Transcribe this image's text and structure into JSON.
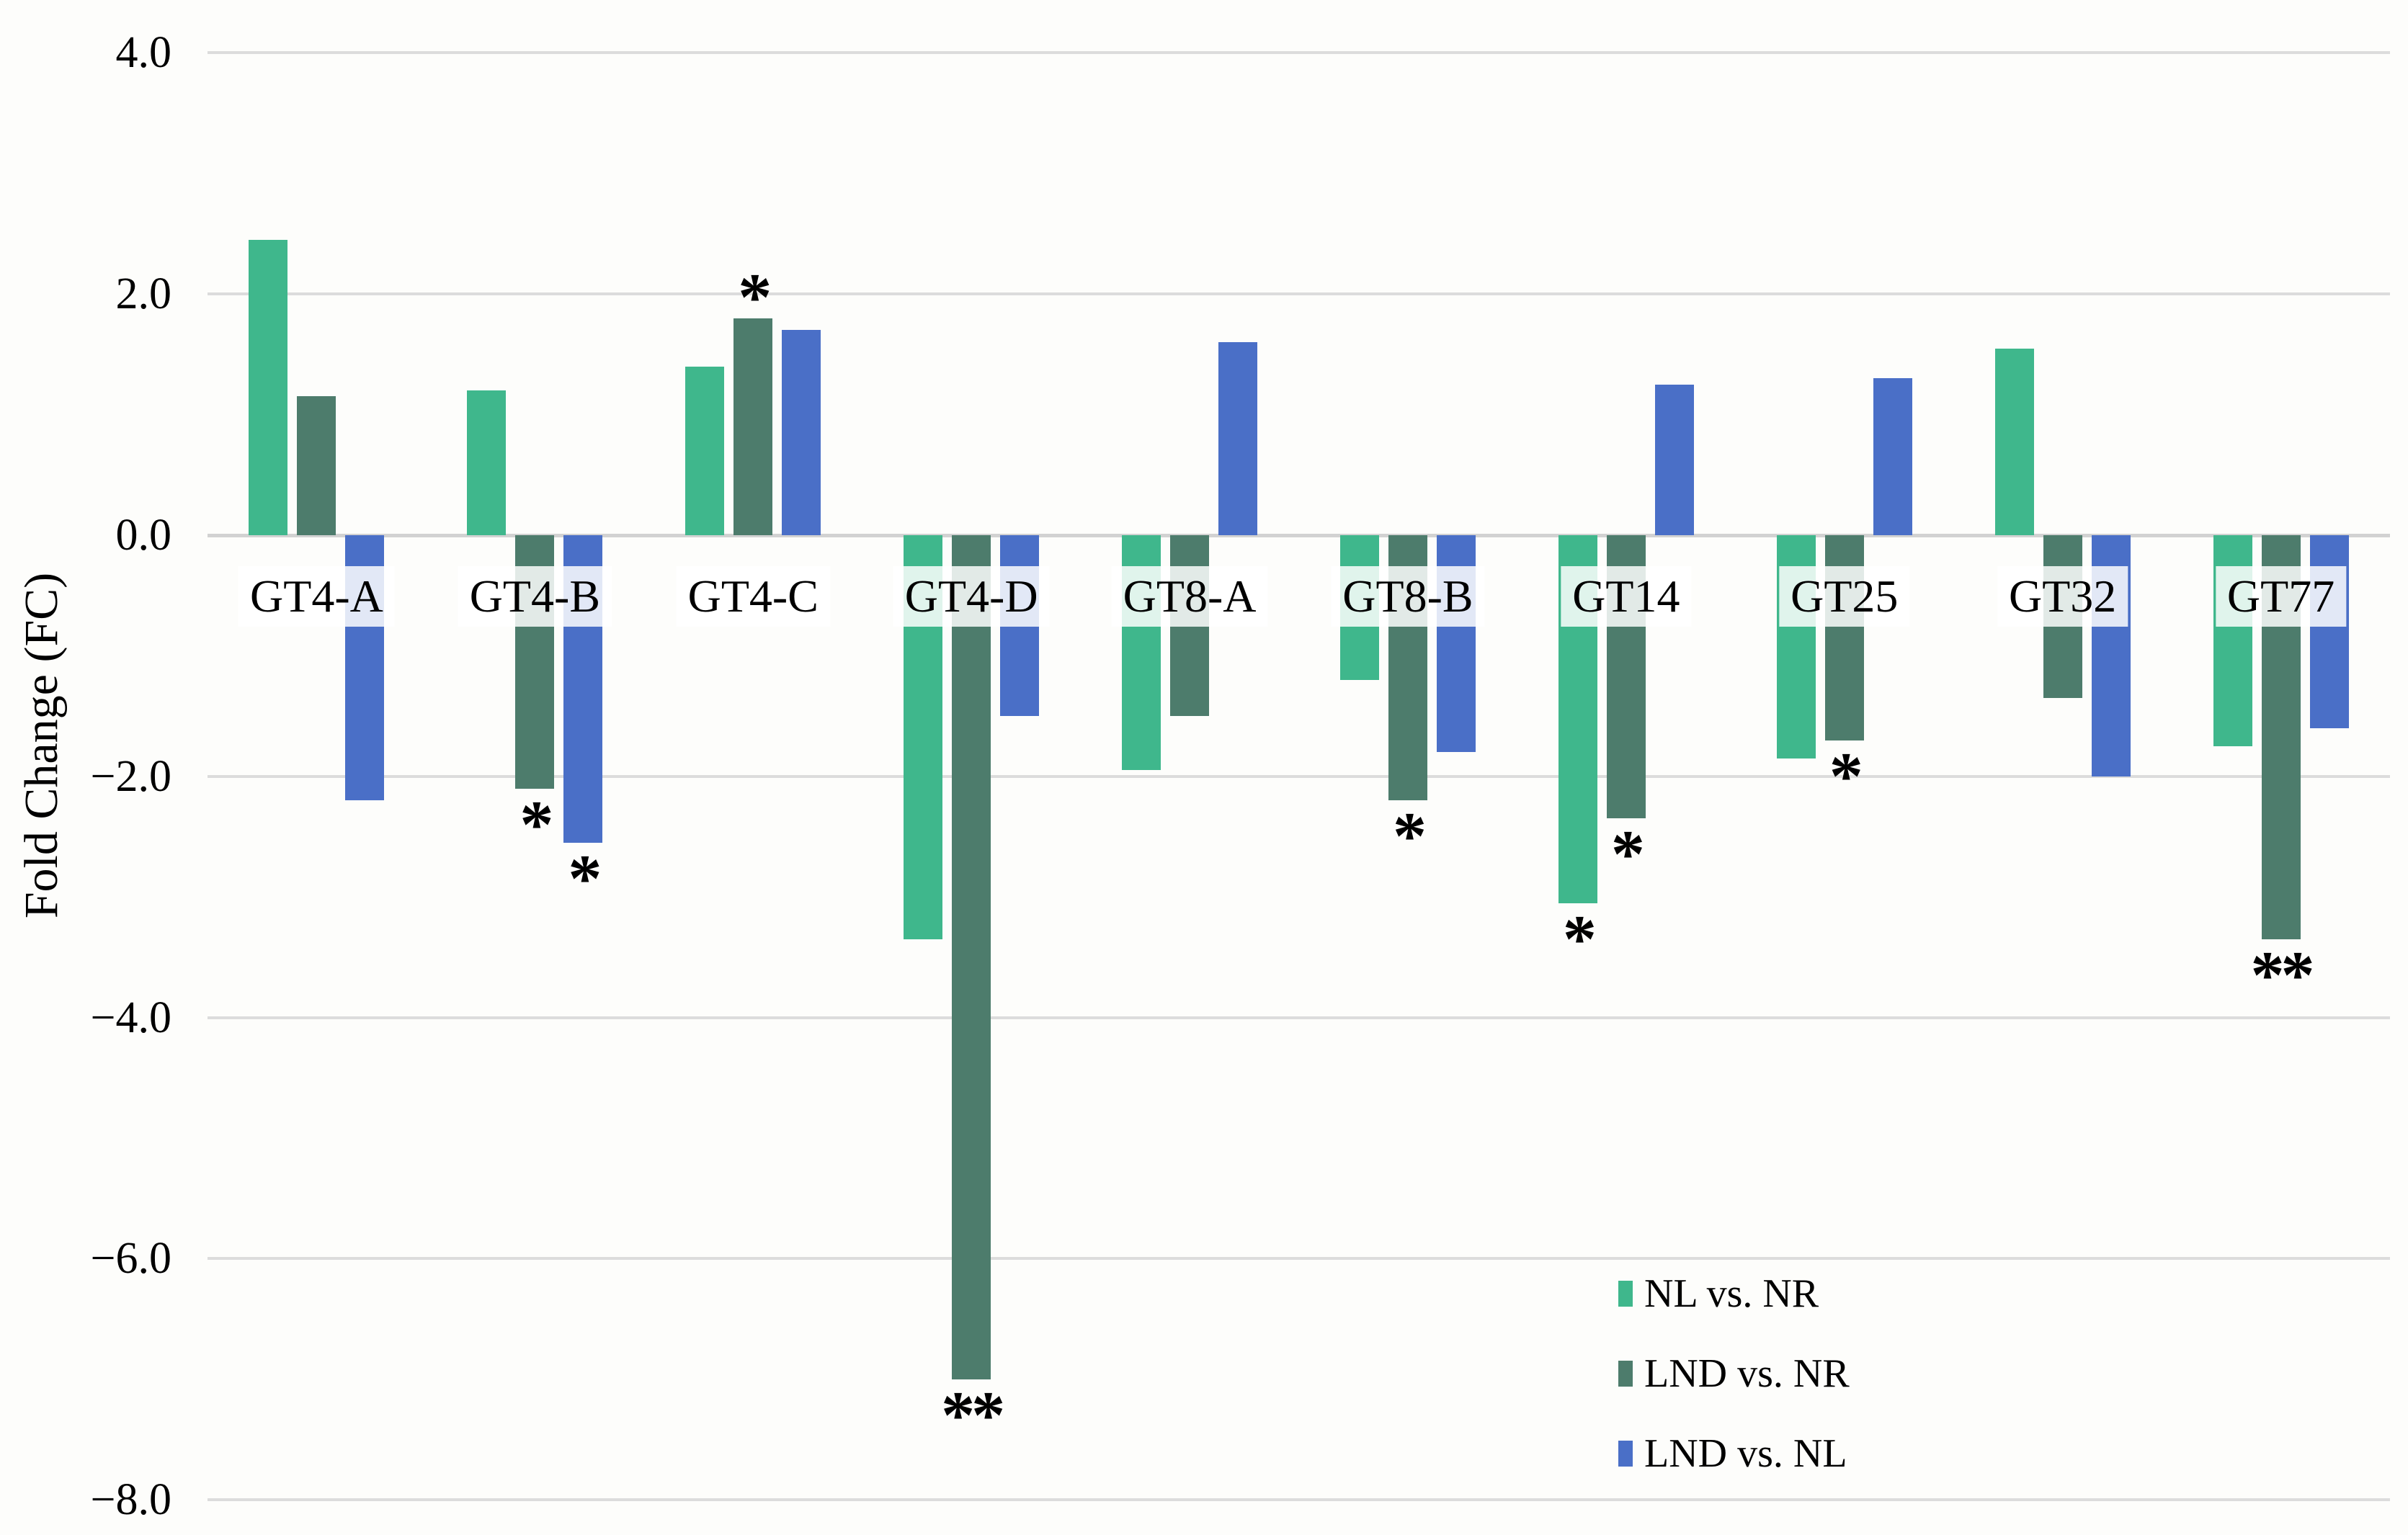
{
  "figure": {
    "background_color": "#fdfdfb",
    "gridline_color": "#dcdcdc",
    "text_color": "#000000",
    "label_box_color": "rgba(255,255,255,0.84)"
  },
  "y_axis": {
    "title": "Fold Change (FC)",
    "ticks": [
      {
        "label": "4.0",
        "value": 4
      },
      {
        "label": "2.0",
        "value": 2
      },
      {
        "label": "0.0",
        "value": 0
      },
      {
        "label": "−2.0",
        "value": -2
      },
      {
        "label": "−4.0",
        "value": -4
      },
      {
        "label": "−6.0",
        "value": -6
      },
      {
        "label": "−8.0",
        "value": -8
      }
    ]
  },
  "legend": {
    "items": [
      {
        "label": "NL vs. NR",
        "color": "#3fb78c"
      },
      {
        "label": "LND vs. NR",
        "color": "#4d7c6c"
      },
      {
        "label": "LND vs. NL",
        "color": "#4a6fc7"
      }
    ]
  },
  "chart_data": {
    "type": "bar",
    "title": "",
    "xlabel": "",
    "ylabel": "Fold Change (FC)",
    "ylim": [
      -8,
      4
    ],
    "ytick_step": 2,
    "grid": true,
    "legend_position": "bottom-right",
    "categories": [
      "GT4-A",
      "GT4-B",
      "GT4-C",
      "GT4-D",
      "GT8-A",
      "GT8-B",
      "GT14",
      "GT25",
      "GT32",
      "GT77"
    ],
    "series": [
      {
        "name": "NL vs. NR",
        "color": "#3fb78c",
        "values": [
          2.45,
          1.2,
          1.4,
          -3.35,
          -1.95,
          -1.2,
          -3.05,
          -1.85,
          1.55,
          -1.75
        ],
        "significance": [
          null,
          null,
          null,
          null,
          null,
          null,
          "*",
          null,
          null,
          null
        ]
      },
      {
        "name": "LND vs. NR",
        "color": "#4d7c6c",
        "values": [
          1.15,
          -2.1,
          1.8,
          -7.0,
          -1.5,
          -2.2,
          -2.35,
          -1.7,
          -1.35,
          -3.35
        ],
        "significance": [
          null,
          "*",
          "*",
          "**",
          null,
          "*",
          "*",
          "*",
          null,
          "**"
        ]
      },
      {
        "name": "LND vs. NL",
        "color": "#4a6fc7",
        "values": [
          -2.2,
          -2.55,
          1.7,
          -1.5,
          1.6,
          -1.8,
          1.25,
          1.3,
          -2.0,
          -1.6
        ],
        "significance": [
          null,
          "*",
          null,
          null,
          null,
          null,
          null,
          null,
          null,
          null
        ]
      }
    ]
  }
}
